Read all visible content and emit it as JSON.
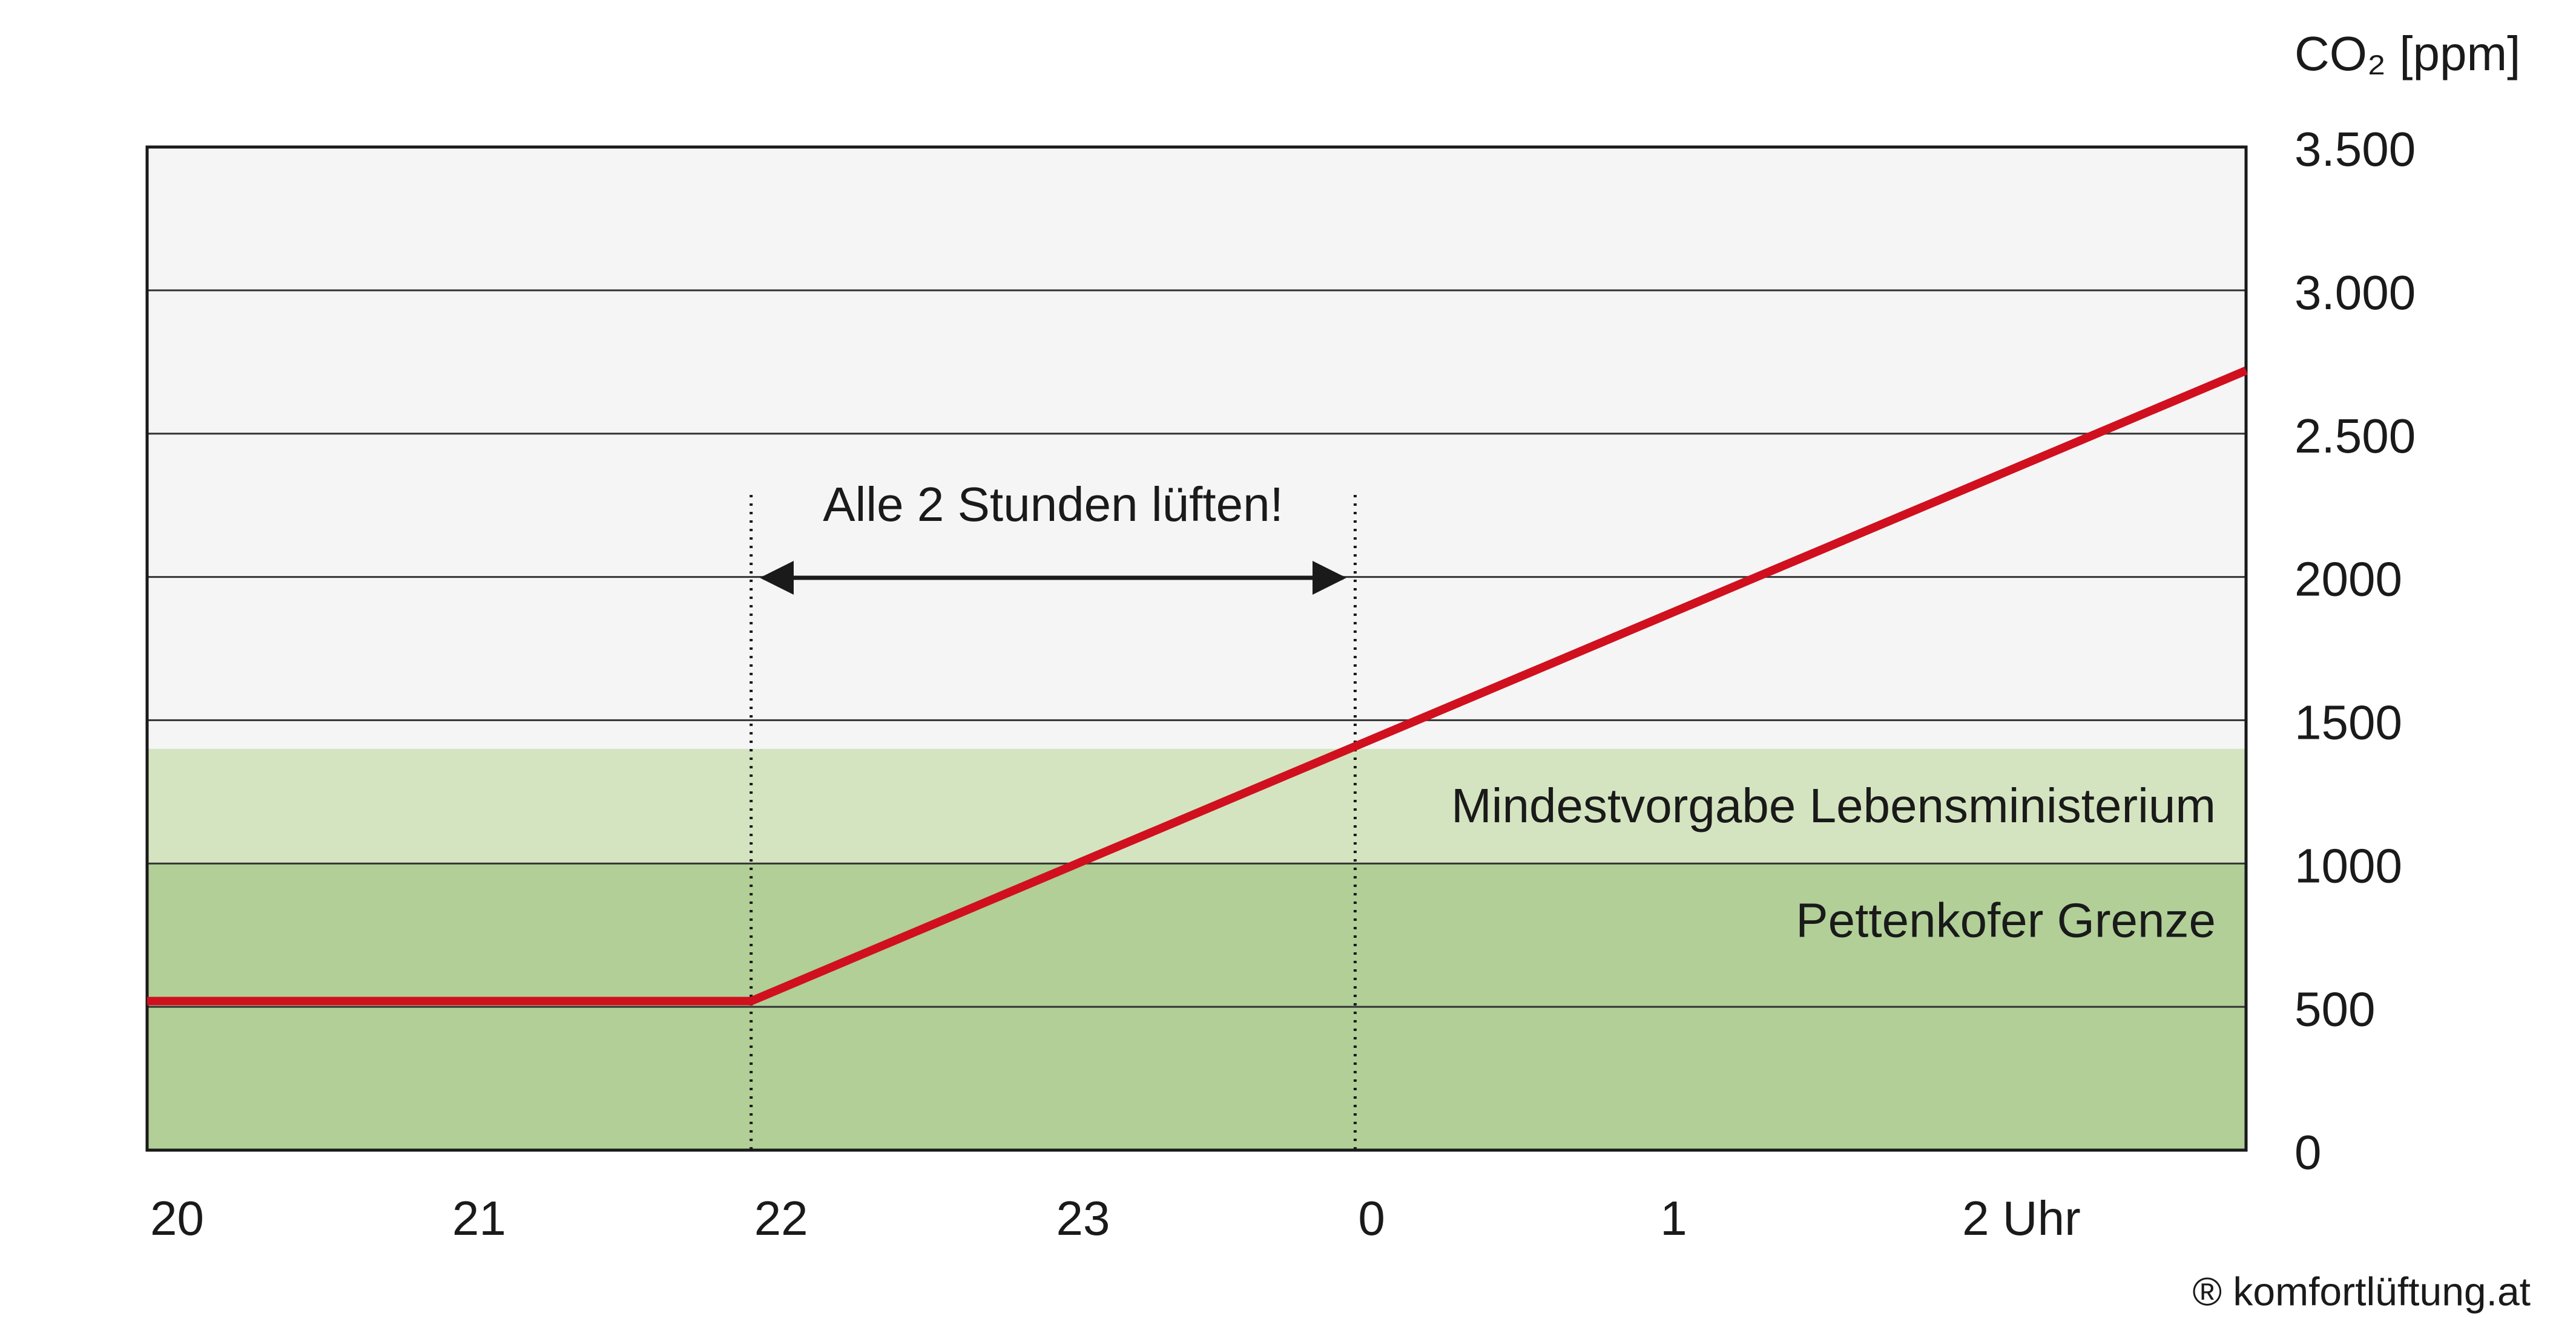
{
  "chart_data": {
    "type": "line",
    "y_label": "CO₂ [ppm]",
    "x": [
      20,
      22,
      26.95
    ],
    "series": [
      {
        "color": "#d0101e",
        "values": [
          520,
          520,
          2720
        ]
      }
    ],
    "xlim": [
      20,
      26.95
    ],
    "xticks": [
      20,
      21,
      22,
      23,
      {
        "value": 24,
        "label": "0"
      },
      {
        "value": 25,
        "label": "1"
      },
      {
        "value": 26,
        "label": "2 Uhr"
      }
    ],
    "ylim": [
      0,
      3500
    ],
    "yticks": [
      0,
      500,
      1000,
      1500,
      2000,
      {
        "value": 2500,
        "label": "2.500"
      },
      {
        "value": 3000,
        "label": "3.000"
      },
      {
        "value": 3500,
        "label": "3.500"
      }
    ],
    "grid": true,
    "bands": [
      {
        "label": "Mindestvorgabe Lebensministerium",
        "from": 0,
        "to": 1400,
        "color": "#d4e4c0"
      },
      {
        "label": "Pettenkofer Grenze",
        "from": 0,
        "to": 1000,
        "color": "#b1cf97"
      }
    ],
    "annotation": {
      "text": "Alle 2 Stunden lüften!",
      "x": [
        22,
        24
      ]
    },
    "credit": "® komfortlüftung.at"
  }
}
